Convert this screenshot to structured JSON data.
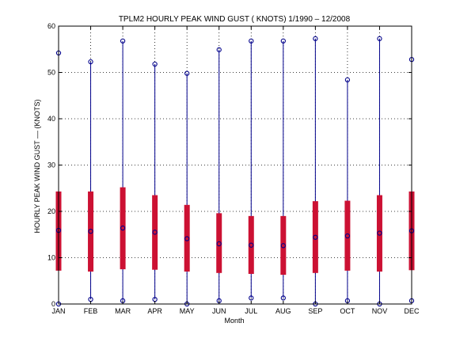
{
  "chart_data": {
    "type": "boxplot",
    "title": "TPLM2  HOURLY PEAK WIND GUST ( KNOTS) 1/1990 – 12/2008",
    "xlabel": "Month",
    "ylabel": "HOURLY PEAK WIND GUST –– (KNOTS)",
    "ylim": [
      0,
      60
    ],
    "yticks": [
      0,
      10,
      20,
      30,
      40,
      50,
      60
    ],
    "grid": true,
    "categories": [
      "JAN",
      "FEB",
      "MAR",
      "APR",
      "MAY",
      "JUN",
      "JUL",
      "AUG",
      "SEP",
      "OCT",
      "NOV",
      "DEC"
    ],
    "min": [
      0,
      1,
      0.7,
      1,
      0,
      0.7,
      1.3,
      1.3,
      0,
      0.7,
      0,
      0.7
    ],
    "max": [
      54.2,
      52.3,
      56.8,
      51.8,
      49.8,
      54.9,
      56.8,
      56.8,
      57.3,
      48.4,
      57.3,
      52.8
    ],
    "q1": [
      7.2,
      7.0,
      7.5,
      7.4,
      7.0,
      6.7,
      6.5,
      6.3,
      6.7,
      7.2,
      7.0,
      7.3
    ],
    "q3": [
      24.3,
      24.3,
      25.2,
      23.5,
      21.4,
      19.6,
      19.0,
      19.0,
      22.2,
      22.3,
      23.5,
      24.3
    ],
    "median": [
      15.9,
      15.7,
      16.4,
      15.5,
      14.1,
      13.0,
      12.7,
      12.6,
      14.4,
      14.7,
      15.3,
      15.8
    ],
    "colors": {
      "whisker": "#00008b",
      "box": "#cc1133",
      "marker": "#00008b",
      "grid": "#000000",
      "axis": "#000000"
    }
  }
}
